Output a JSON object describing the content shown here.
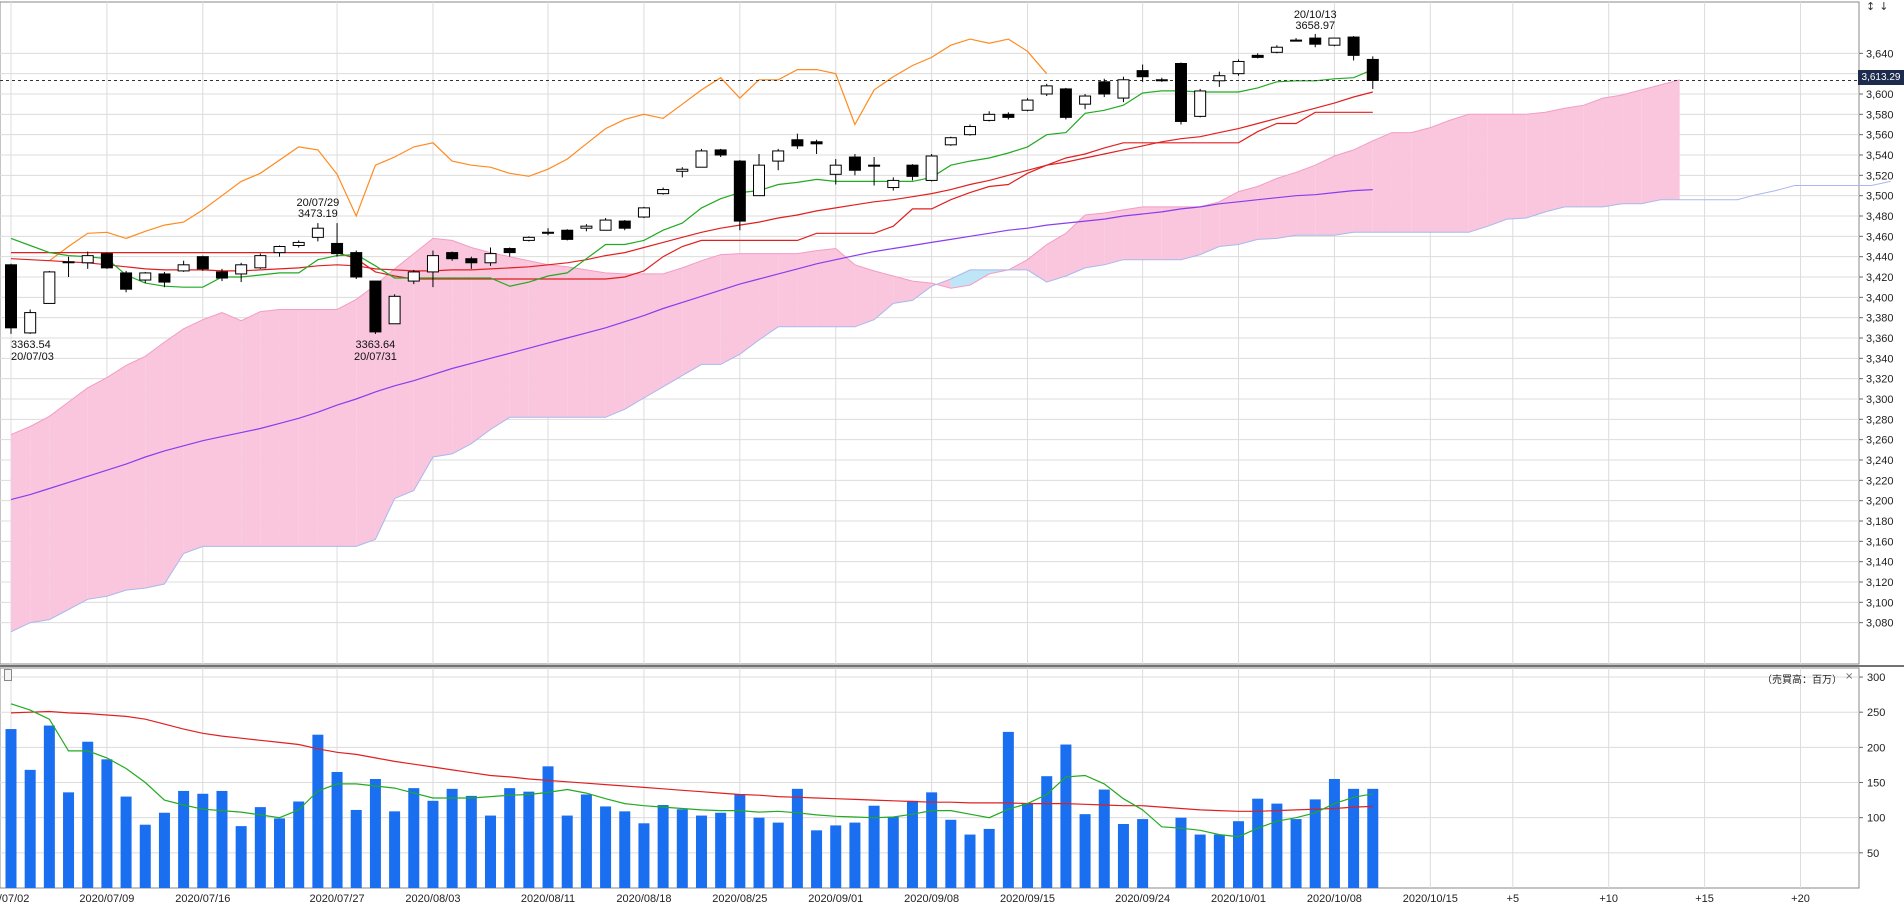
{
  "colors": {
    "up_body": "#ffffff",
    "down_body": "#000000",
    "candle_line": "#000000",
    "ma_green": "#22aa22",
    "ma_red": "#e02020",
    "ma_purple": "#8a3cf0",
    "chikou_orange": "#ff8a20",
    "kumo_bull": "#f9c6dd",
    "kumo_bear": "#bfe6f7",
    "kumo_edge": "#a9b8ee",
    "volume_bar": "#1a6ef0",
    "grid": "#dcdcdc",
    "current_line": "#333333"
  },
  "current_price_label": "3,613.29",
  "volume_unit_label": "（売買高：百万）",
  "volume_close_icon": "×",
  "scroll_arrows": "↕↓",
  "annotations": [
    {
      "text": "3363.54",
      "kind": "low-value"
    },
    {
      "text": "20/07/03",
      "kind": "low-date"
    },
    {
      "text": "20/07/29",
      "kind": "high-date"
    },
    {
      "text": "3473.19",
      "kind": "high-value"
    },
    {
      "text": "3363.64",
      "kind": "low-value"
    },
    {
      "text": "20/07/31",
      "kind": "low-date"
    },
    {
      "text": "20/10/13",
      "kind": "high-date"
    },
    {
      "text": "3658.97",
      "kind": "high-value"
    }
  ],
  "chart_data": {
    "type": "candlestick",
    "x_ticks": [
      "0/07/02",
      "2020/07/09",
      "2020/07/16",
      "2020/07/27",
      "2020/08/03",
      "2020/08/11",
      "2020/08/18",
      "2020/08/25",
      "2020/09/01",
      "2020/09/08",
      "2020/09/15",
      "2020/09/24",
      "2020/10/01",
      "2020/10/08",
      "2020/10/15",
      "+5",
      "+10",
      "+15",
      "+20"
    ],
    "y_ticks": [
      "3,080",
      "3,100",
      "3,120",
      "3,140",
      "3,160",
      "3,180",
      "3,200",
      "3,220",
      "3,240",
      "3,260",
      "3,280",
      "3,300",
      "3,320",
      "3,340",
      "3,360",
      "3,380",
      "3,400",
      "3,420",
      "3,440",
      "3,460",
      "3,480",
      "3,500",
      "3,520",
      "3,540",
      "3,560",
      "3,580",
      "3,600",
      "3,620",
      "3,640"
    ],
    "y_range": [
      3060,
      3660
    ],
    "current_price": 3613.29,
    "candles": [
      {
        "o": 3432,
        "h": 3433,
        "l": 3364,
        "c": 3370
      },
      {
        "o": 3365,
        "h": 3388,
        "l": 3364,
        "c": 3385
      },
      {
        "o": 3394,
        "h": 3426,
        "l": 3394,
        "c": 3425
      },
      {
        "o": 3434,
        "h": 3440,
        "l": 3420,
        "c": 3435
      },
      {
        "o": 3434,
        "h": 3445,
        "l": 3428,
        "c": 3441
      },
      {
        "o": 3443,
        "h": 3444,
        "l": 3428,
        "c": 3429
      },
      {
        "o": 3424,
        "h": 3426,
        "l": 3405,
        "c": 3408
      },
      {
        "o": 3417,
        "h": 3425,
        "l": 3414,
        "c": 3424
      },
      {
        "o": 3423,
        "h": 3425,
        "l": 3410,
        "c": 3415
      },
      {
        "o": 3426,
        "h": 3436,
        "l": 3425,
        "c": 3432
      },
      {
        "o": 3440,
        "h": 3441,
        "l": 3426,
        "c": 3428
      },
      {
        "o": 3425,
        "h": 3428,
        "l": 3416,
        "c": 3419
      },
      {
        "o": 3423,
        "h": 3434,
        "l": 3415,
        "c": 3432
      },
      {
        "o": 3429,
        "h": 3443,
        "l": 3428,
        "c": 3441
      },
      {
        "o": 3444,
        "h": 3451,
        "l": 3440,
        "c": 3450
      },
      {
        "o": 3451,
        "h": 3456,
        "l": 3449,
        "c": 3454
      },
      {
        "o": 3459,
        "h": 3473,
        "l": 3455,
        "c": 3468
      },
      {
        "o": 3453,
        "h": 3473,
        "l": 3440,
        "c": 3443
      },
      {
        "o": 3444,
        "h": 3446,
        "l": 3418,
        "c": 3420
      },
      {
        "o": 3416,
        "h": 3416,
        "l": 3364,
        "c": 3366
      },
      {
        "o": 3374,
        "h": 3403,
        "l": 3374,
        "c": 3401
      },
      {
        "o": 3416,
        "h": 3427,
        "l": 3413,
        "c": 3425
      },
      {
        "o": 3425,
        "h": 3446,
        "l": 3410,
        "c": 3441
      },
      {
        "o": 3444,
        "h": 3445,
        "l": 3436,
        "c": 3438
      },
      {
        "o": 3438,
        "h": 3440,
        "l": 3428,
        "c": 3434
      },
      {
        "o": 3434,
        "h": 3449,
        "l": 3431,
        "c": 3443
      },
      {
        "o": 3448,
        "h": 3449,
        "l": 3440,
        "c": 3444
      },
      {
        "o": 3456,
        "h": 3460,
        "l": 3455,
        "c": 3459
      },
      {
        "o": 3463,
        "h": 3468,
        "l": 3461,
        "c": 3464
      },
      {
        "o": 3466,
        "h": 3467,
        "l": 3456,
        "c": 3457
      },
      {
        "o": 3468,
        "h": 3472,
        "l": 3465,
        "c": 3470
      },
      {
        "o": 3466,
        "h": 3478,
        "l": 3466,
        "c": 3476
      },
      {
        "o": 3475,
        "h": 3476,
        "l": 3466,
        "c": 3468
      },
      {
        "o": 3479,
        "h": 3489,
        "l": 3478,
        "c": 3488
      },
      {
        "o": 3502,
        "h": 3508,
        "l": 3501,
        "c": 3506
      },
      {
        "o": 3524,
        "h": 3528,
        "l": 3518,
        "c": 3526
      },
      {
        "o": 3528,
        "h": 3546,
        "l": 3528,
        "c": 3544
      },
      {
        "o": 3545,
        "h": 3546,
        "l": 3538,
        "c": 3540
      },
      {
        "o": 3534,
        "h": 3535,
        "l": 3466,
        "c": 3475
      },
      {
        "o": 3500,
        "h": 3541,
        "l": 3500,
        "c": 3530
      },
      {
        "o": 3534,
        "h": 3546,
        "l": 3525,
        "c": 3544
      },
      {
        "o": 3555,
        "h": 3561,
        "l": 3546,
        "c": 3549
      },
      {
        "o": 3553,
        "h": 3555,
        "l": 3541,
        "c": 3551
      },
      {
        "o": 3521,
        "h": 3536,
        "l": 3511,
        "c": 3530
      },
      {
        "o": 3538,
        "h": 3541,
        "l": 3520,
        "c": 3525
      },
      {
        "o": 3530,
        "h": 3538,
        "l": 3510,
        "c": 3529
      },
      {
        "o": 3508,
        "h": 3518,
        "l": 3505,
        "c": 3515
      },
      {
        "o": 3530,
        "h": 3531,
        "l": 3515,
        "c": 3519
      },
      {
        "o": 3515,
        "h": 3541,
        "l": 3514,
        "c": 3539
      },
      {
        "o": 3550,
        "h": 3558,
        "l": 3549,
        "c": 3557
      },
      {
        "o": 3560,
        "h": 3570,
        "l": 3559,
        "c": 3568
      },
      {
        "o": 3574,
        "h": 3583,
        "l": 3573,
        "c": 3580
      },
      {
        "o": 3580,
        "h": 3582,
        "l": 3575,
        "c": 3577
      },
      {
        "o": 3584,
        "h": 3596,
        "l": 3583,
        "c": 3594
      },
      {
        "o": 3600,
        "h": 3610,
        "l": 3598,
        "c": 3608
      },
      {
        "o": 3605,
        "h": 3606,
        "l": 3575,
        "c": 3577
      },
      {
        "o": 3590,
        "h": 3600,
        "l": 3585,
        "c": 3598
      },
      {
        "o": 3612,
        "h": 3615,
        "l": 3597,
        "c": 3600
      },
      {
        "o": 3596,
        "h": 3617,
        "l": 3592,
        "c": 3614
      },
      {
        "o": 3623,
        "h": 3629,
        "l": 3612,
        "c": 3617
      },
      {
        "o": 3614,
        "h": 3616,
        "l": 3612,
        "c": 3614
      },
      {
        "o": 3630,
        "h": 3631,
        "l": 3570,
        "c": 3573
      },
      {
        "o": 3578,
        "h": 3605,
        "l": 3577,
        "c": 3603
      },
      {
        "o": 3613,
        "h": 3622,
        "l": 3607,
        "c": 3618
      },
      {
        "o": 3620,
        "h": 3634,
        "l": 3618,
        "c": 3632
      },
      {
        "o": 3638,
        "h": 3640,
        "l": 3635,
        "c": 3636
      },
      {
        "o": 3641,
        "h": 3648,
        "l": 3640,
        "c": 3646
      },
      {
        "o": 3652,
        "h": 3655,
        "l": 3652,
        "c": 3653
      },
      {
        "o": 3655,
        "h": 3659,
        "l": 3646,
        "c": 3649
      },
      {
        "o": 3648,
        "h": 3655,
        "l": 3647,
        "c": 3655
      },
      {
        "o": 3656,
        "h": 3657,
        "l": 3633,
        "c": 3638
      },
      {
        "o": 3634,
        "h": 3637,
        "l": 3605,
        "c": 3613.29
      }
    ],
    "tenkan_green": [
      3458,
      3451,
      3444,
      3441,
      3440,
      3438,
      3422,
      3414,
      3411,
      3410,
      3410,
      3420,
      3420,
      3422,
      3424,
      3424,
      3437,
      3441,
      3442,
      3431,
      3419,
      3419,
      3419,
      3419,
      3419,
      3419,
      3411,
      3415,
      3421,
      3424,
      3438,
      3452,
      3452,
      3456,
      3466,
      3473,
      3488,
      3497,
      3503,
      3505,
      3511,
      3513,
      3516,
      3514,
      3514,
      3514,
      3514,
      3514,
      3518,
      3530,
      3534,
      3537,
      3542,
      3548,
      3560,
      3562,
      3581,
      3584,
      3589,
      3601,
      3603,
      3603,
      3602,
      3602,
      3602,
      3606,
      3612,
      3613,
      3613,
      3615,
      3616,
      3624
    ],
    "kijun_red": [
      3444,
      3444,
      3444,
      3444,
      3444,
      3444,
      3444,
      3444,
      3444,
      3444,
      3444,
      3444,
      3444,
      3444,
      3444,
      3444,
      3444,
      3444,
      3438,
      3425,
      3421,
      3418,
      3418,
      3418,
      3418,
      3418,
      3418,
      3418,
      3418,
      3418,
      3418,
      3418,
      3420,
      3426,
      3440,
      3450,
      3456,
      3456,
      3456,
      3456,
      3456,
      3456,
      3463,
      3463,
      3463,
      3463,
      3470,
      3487,
      3487,
      3496,
      3503,
      3509,
      3511,
      3522,
      3530,
      3537,
      3541,
      3547,
      3552,
      3552,
      3552,
      3552,
      3552,
      3552,
      3552,
      3563,
      3571,
      3571,
      3582,
      3582,
      3582,
      3582
    ],
    "ma_red_smooth": [
      3438,
      3437,
      3436,
      3435,
      3434,
      3432,
      3430,
      3428,
      3427,
      3427,
      3427,
      3426,
      3426,
      3427,
      3428,
      3429,
      3431,
      3432,
      3431,
      3428,
      3427,
      3426,
      3426,
      3427,
      3427,
      3428,
      3429,
      3430,
      3432,
      3434,
      3437,
      3441,
      3444,
      3449,
      3454,
      3459,
      3464,
      3468,
      3471,
      3474,
      3478,
      3481,
      3485,
      3488,
      3491,
      3494,
      3496,
      3499,
      3502,
      3506,
      3511,
      3515,
      3520,
      3525,
      3530,
      3533,
      3537,
      3541,
      3545,
      3549,
      3553,
      3556,
      3558,
      3562,
      3566,
      3571,
      3576,
      3581,
      3586,
      3591,
      3597,
      3602
    ],
    "ma_purple": [
      3201,
      3206,
      3212,
      3218,
      3224,
      3230,
      3236,
      3243,
      3249,
      3254,
      3259,
      3263,
      3267,
      3271,
      3276,
      3281,
      3287,
      3294,
      3300,
      3307,
      3313,
      3318,
      3324,
      3330,
      3335,
      3340,
      3345,
      3350,
      3355,
      3360,
      3365,
      3370,
      3376,
      3382,
      3389,
      3395,
      3401,
      3407,
      3413,
      3418,
      3423,
      3428,
      3433,
      3437,
      3441,
      3445,
      3448,
      3451,
      3454,
      3457,
      3460,
      3463,
      3466,
      3468,
      3471,
      3473,
      3475,
      3477,
      3480,
      3482,
      3484,
      3487,
      3489,
      3492,
      3494,
      3496,
      3498,
      3500,
      3501,
      3503,
      3505,
      3506
    ],
    "chikou_orange": [
      3436,
      3450,
      3463,
      3464,
      3458,
      3465,
      3471,
      3474,
      3486,
      3500,
      3514,
      3522,
      3535,
      3548,
      3545,
      3521,
      3480,
      3530,
      3538,
      3548,
      3552,
      3534,
      3530,
      3528,
      3522,
      3519,
      3526,
      3536,
      3551,
      3566,
      3575,
      3580,
      3576,
      3590,
      3604,
      3616,
      3596,
      3614,
      3614,
      3624,
      3624,
      3620,
      3570,
      3604,
      3617,
      3628,
      3636,
      3648,
      3654,
      3650,
      3654,
      3642,
      3620
    ],
    "senkou_a": [
      3265,
      3273,
      3283,
      3297,
      3311,
      3321,
      3333,
      3342,
      3356,
      3369,
      3378,
      3385,
      3377,
      3386,
      3388,
      3388,
      3388,
      3388,
      3398,
      3412,
      3428,
      3443,
      3458,
      3456,
      3449,
      3444,
      3440,
      3436,
      3432,
      3430,
      3427,
      3424,
      3423,
      3423,
      3423,
      3429,
      3436,
      3442,
      3443,
      3443,
      3443,
      3443,
      3446,
      3448,
      3432,
      3426,
      3421,
      3416,
      3414,
      3409,
      3412,
      3423,
      3427,
      3437,
      3452,
      3463,
      3481,
      3483,
      3486,
      3489,
      3489,
      3489,
      3489,
      3494,
      3504,
      3509,
      3517,
      3523,
      3530,
      3539,
      3545,
      3554,
      3562,
      3562,
      3567,
      3574,
      3580,
      3580,
      3580,
      3580,
      3582,
      3586,
      3589,
      3596,
      3599,
      3604,
      3609,
      3614
    ],
    "senkou_b": [
      3071,
      3080,
      3083,
      3093,
      3103,
      3106,
      3112,
      3114,
      3118,
      3148,
      3155,
      3155,
      3155,
      3155,
      3155,
      3155,
      3155,
      3155,
      3155,
      3162,
      3202,
      3210,
      3243,
      3246,
      3256,
      3270,
      3282,
      3282,
      3282,
      3282,
      3282,
      3282,
      3290,
      3301,
      3312,
      3323,
      3334,
      3334,
      3344,
      3358,
      3371,
      3371,
      3371,
      3371,
      3371,
      3378,
      3394,
      3397,
      3411,
      3418,
      3427,
      3427,
      3427,
      3427,
      3415,
      3421,
      3429,
      3432,
      3437,
      3437,
      3437,
      3437,
      3442,
      3450,
      3452,
      3457,
      3458,
      3461,
      3461,
      3461,
      3464,
      3464,
      3464,
      3464,
      3464,
      3464,
      3464,
      3470,
      3477,
      3478,
      3484,
      3489,
      3489,
      3489,
      3492,
      3492,
      3496,
      3496,
      3496,
      3496,
      3496,
      3501,
      3505,
      3510,
      3510,
      3510,
      3510,
      3510,
      3514
    ],
    "volume": {
      "y_ticks": [
        "50",
        "100",
        "150",
        "200",
        "250",
        "300"
      ],
      "y_range": [
        0,
        310
      ],
      "values": [
        226,
        168,
        231,
        136,
        208,
        183,
        130,
        90,
        107,
        138,
        134,
        138,
        88,
        115,
        99,
        123,
        218,
        165,
        111,
        155,
        109,
        142,
        124,
        141,
        131,
        103,
        142,
        137,
        173,
        103,
        133,
        116,
        109,
        92,
        118,
        112,
        103,
        107,
        133,
        100,
        93,
        141,
        82,
        89,
        93,
        117,
        101,
        124,
        136,
        97,
        76,
        84,
        222,
        121,
        159,
        204,
        105,
        140,
        91,
        98,
        0,
        100,
        76,
        76,
        95,
        127,
        120,
        98,
        126,
        155,
        141,
        141
      ],
      "ma_red": [
        249,
        250,
        251,
        249,
        248,
        246,
        244,
        240,
        233,
        226,
        220,
        216,
        213,
        210,
        207,
        204,
        198,
        193,
        190,
        185,
        180,
        176,
        172,
        168,
        164,
        160,
        158,
        155,
        153,
        151,
        149,
        147,
        145,
        143,
        141,
        139,
        137,
        135,
        133,
        132,
        130,
        129,
        128,
        127,
        126,
        125,
        124,
        123,
        122,
        122,
        121,
        121,
        121,
        120,
        120,
        120,
        119,
        118,
        117,
        117,
        115,
        113,
        111,
        110,
        109,
        109,
        110,
        111,
        112,
        113,
        115,
        116
      ],
      "ma_green": [
        262,
        253,
        240,
        195,
        195,
        185,
        170,
        150,
        125,
        118,
        112,
        110,
        108,
        104,
        100,
        111,
        138,
        148,
        148,
        145,
        142,
        135,
        128,
        128,
        128,
        130,
        132,
        133,
        136,
        140,
        135,
        127,
        120,
        117,
        115,
        113,
        111,
        110,
        110,
        108,
        109,
        107,
        104,
        102,
        101,
        100,
        101,
        105,
        110,
        110,
        105,
        100,
        112,
        120,
        133,
        158,
        160,
        148,
        127,
        111,
        87,
        85,
        82,
        76,
        73,
        85,
        95,
        100,
        107,
        120,
        129,
        134
      ]
    }
  }
}
